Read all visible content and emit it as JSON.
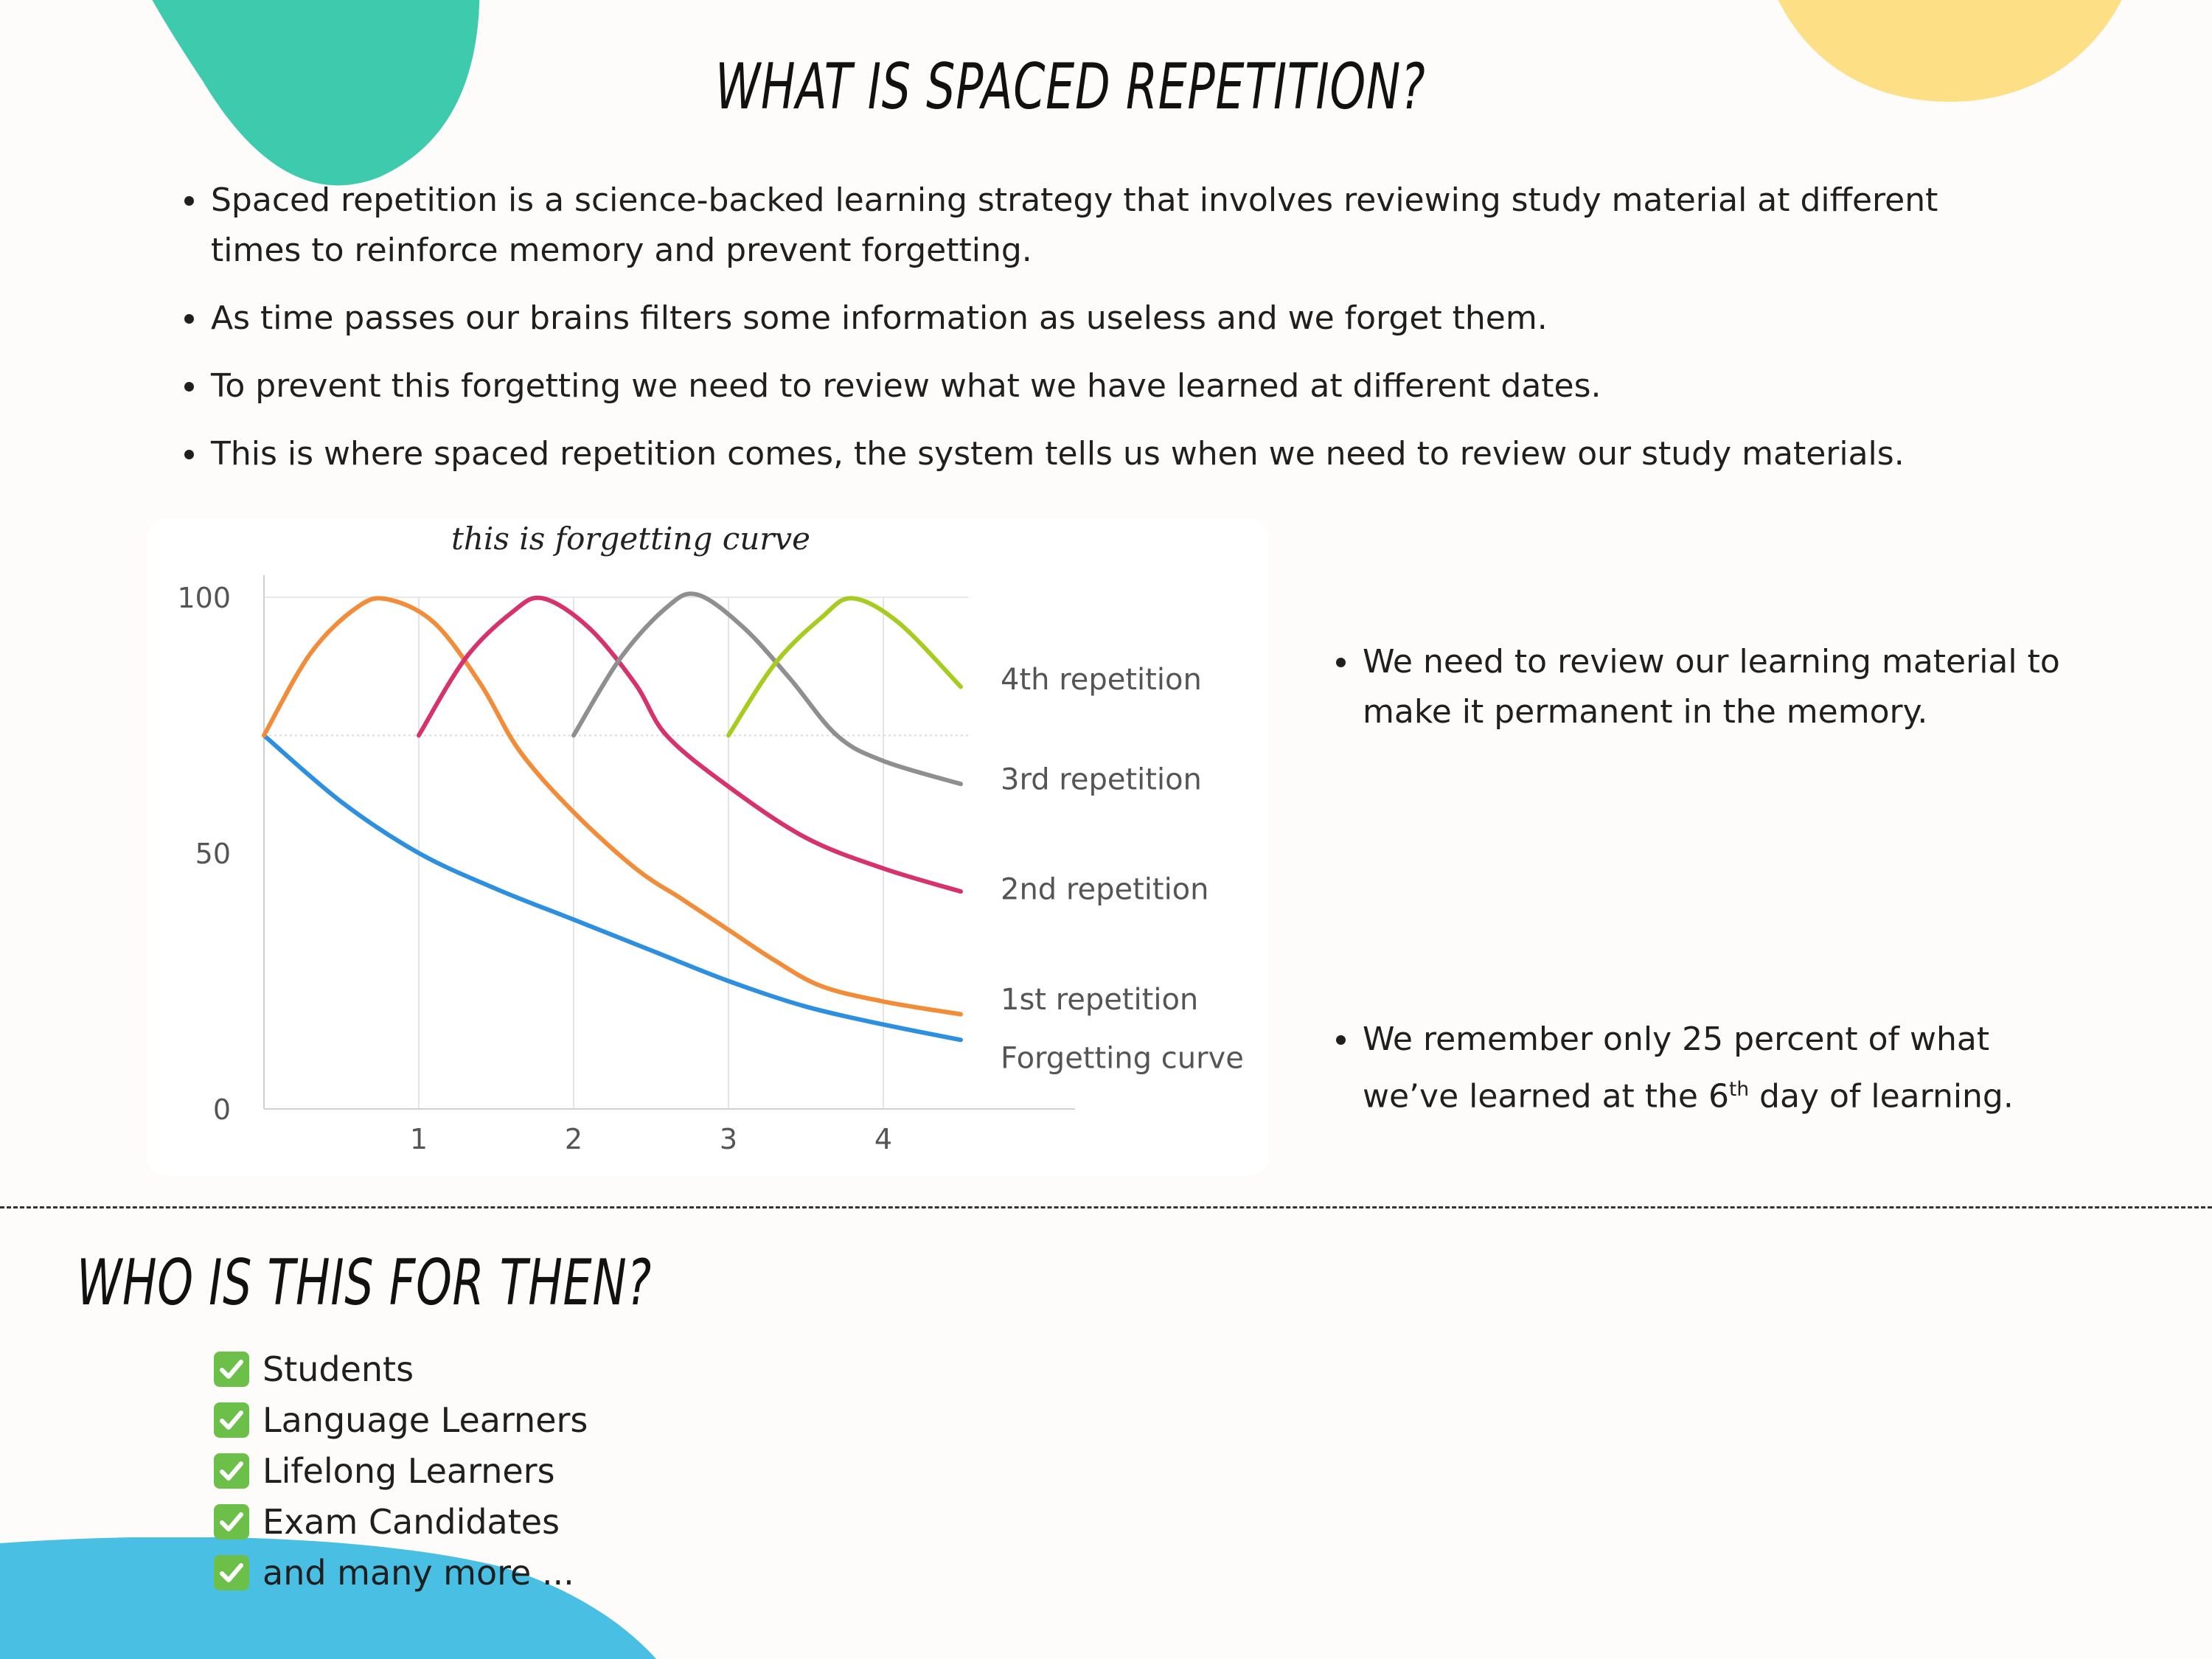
{
  "colors": {
    "background": "#fdfcfa",
    "blob_green": "#3ecbad",
    "blob_yellow": "#fde085",
    "blob_blue": "#49bfe3",
    "check": "#6cc04a"
  },
  "title_main": "WHAT IS SPACED REPETITION?",
  "top_bullets": [
    "Spaced repetition is a science-backed learning strategy that involves reviewing study material at different times to reinforce memory and prevent forgetting.",
    "As time passes our brains filters some information as useless and we forget them.",
    "To prevent this forgetting we need to review what we have learned at different dates.",
    "This is where spaced repetition comes, the system tells us when we need to review our study materials."
  ],
  "chart_note": "this is forgetting curve",
  "chart_data": {
    "type": "line",
    "title": "",
    "xlabel": "",
    "ylabel": "",
    "xlim": [
      0,
      5
    ],
    "ylim": [
      0,
      100
    ],
    "x_ticks": [
      "1",
      "2",
      "3",
      "4"
    ],
    "y_ticks": [
      "0",
      "50",
      "100"
    ],
    "grid": true,
    "series": [
      {
        "name": "Forgetting curve",
        "color": "#2d8fe0",
        "points": [
          [
            0,
            73
          ],
          [
            0.5,
            60
          ],
          [
            1,
            50
          ],
          [
            1.5,
            43
          ],
          [
            2,
            37
          ],
          [
            2.5,
            31
          ],
          [
            3,
            25
          ],
          [
            3.5,
            20
          ],
          [
            4,
            16.5
          ],
          [
            4.5,
            13.5
          ]
        ]
      },
      {
        "name": "1st repetition",
        "color": "#f28c38",
        "points": [
          [
            0,
            73
          ],
          [
            0.3,
            89
          ],
          [
            0.6,
            98
          ],
          [
            0.8,
            99.6
          ],
          [
            1.1,
            95
          ],
          [
            1.4,
            83
          ],
          [
            1.65,
            70
          ],
          [
            2,
            58
          ],
          [
            2.4,
            47
          ],
          [
            2.7,
            41
          ],
          [
            3,
            35
          ],
          [
            3.3,
            29
          ],
          [
            3.6,
            24
          ],
          [
            4,
            21
          ],
          [
            4.5,
            18.5
          ]
        ]
      },
      {
        "name": "2nd repetition",
        "color": "#d6336c",
        "points": [
          [
            1,
            73
          ],
          [
            1.3,
            88
          ],
          [
            1.6,
            97
          ],
          [
            1.8,
            99.8
          ],
          [
            2.1,
            94
          ],
          [
            2.4,
            83
          ],
          [
            2.6,
            73
          ],
          [
            3,
            63
          ],
          [
            3.5,
            53
          ],
          [
            4,
            47
          ],
          [
            4.5,
            42.5
          ]
        ]
      },
      {
        "name": "3rd repetition",
        "color": "#8f8f8f",
        "points": [
          [
            2,
            73
          ],
          [
            2.3,
            88
          ],
          [
            2.6,
            98
          ],
          [
            2.8,
            100.5
          ],
          [
            3.1,
            94
          ],
          [
            3.4,
            84
          ],
          [
            3.7,
            73
          ],
          [
            4,
            68
          ],
          [
            4.5,
            63.5
          ]
        ]
      },
      {
        "name": "4th repetition",
        "color": "#a7cc1f",
        "points": [
          [
            3,
            73
          ],
          [
            3.3,
            87
          ],
          [
            3.6,
            96
          ],
          [
            3.8,
            99.8
          ],
          [
            4.1,
            95
          ],
          [
            4.5,
            82.5
          ]
        ]
      }
    ]
  },
  "side_bullet_1": "We need to review our learning material to make it permanent in the memory.",
  "side_bullet_2": {
    "before": "We remember only 25 percent of what we’ve learned at the 6",
    "sup": "th",
    "after": " day of learning."
  },
  "title_who": "WHO IS THIS FOR THEN?",
  "checklist": [
    {
      "icon": "check-mark-icon",
      "label": "Students"
    },
    {
      "icon": "check-mark-icon",
      "label": "Language Learners"
    },
    {
      "icon": "check-mark-icon",
      "label": "Lifelong Learners"
    },
    {
      "icon": "check-mark-icon",
      "label": "Exam Candidates"
    },
    {
      "icon": "check-mark-icon",
      "label": "and many more ..."
    }
  ]
}
